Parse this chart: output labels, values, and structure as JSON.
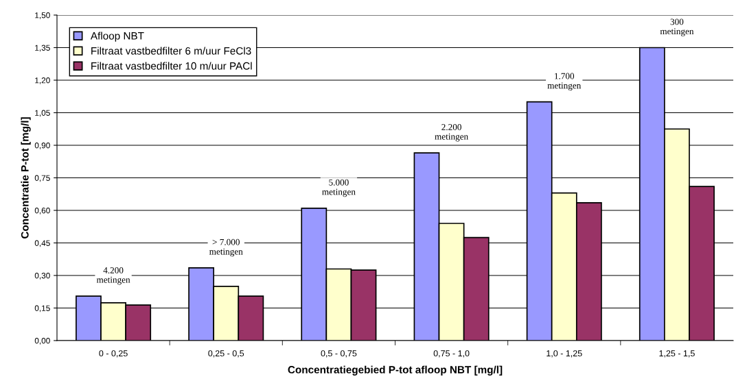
{
  "chart_data": {
    "type": "bar",
    "xlabel": "Concentratiegebied P-tot afloop NBT [mg/l]",
    "ylabel": "Concentratie P-tot [mg/l]",
    "categories": [
      "0 - 0,25",
      "0,25 - 0,5",
      "0,5 - 0,75",
      "0,75 - 1,0",
      "1,0 - 1,25",
      "1,25 - 1,5"
    ],
    "series": [
      {
        "name": "Afloop NBT",
        "color": "#9999ff",
        "values": [
          0.205,
          0.335,
          0.61,
          0.865,
          1.1,
          1.35
        ]
      },
      {
        "name": "Filtraat vastbedfilter 6 m/uur FeCl3",
        "color": "#ffffcc",
        "values": [
          0.174,
          0.25,
          0.33,
          0.54,
          0.68,
          0.975
        ]
      },
      {
        "name": "Filtraat vastbedfilter 10 m/uur PACl",
        "color": "#993366",
        "values": [
          0.164,
          0.205,
          0.325,
          0.475,
          0.635,
          0.71
        ]
      }
    ],
    "ylim": [
      0,
      1.5
    ],
    "yticks": [
      {
        "value": 0,
        "label": "0,00"
      },
      {
        "value": 0.15,
        "label": "0,15"
      },
      {
        "value": 0.3,
        "label": "0,30"
      },
      {
        "value": 0.45,
        "label": "0,45"
      },
      {
        "value": 0.6,
        "label": "0,60"
      },
      {
        "value": 0.75,
        "label": "0,75"
      },
      {
        "value": 0.9,
        "label": "0,90"
      },
      {
        "value": 1.05,
        "label": "1,05"
      },
      {
        "value": 1.2,
        "label": "1,20"
      },
      {
        "value": 1.35,
        "label": "1,35"
      },
      {
        "value": 1.5,
        "label": "1,50"
      }
    ],
    "grid": "y",
    "legend": "top left",
    "annotations": [
      "4.200\nmetingen",
      "> 7.000\nmetingen",
      "5.000\nmetingen",
      "2.200\nmetingen",
      "1.700\nmetingen",
      "300\nmetingen"
    ]
  }
}
